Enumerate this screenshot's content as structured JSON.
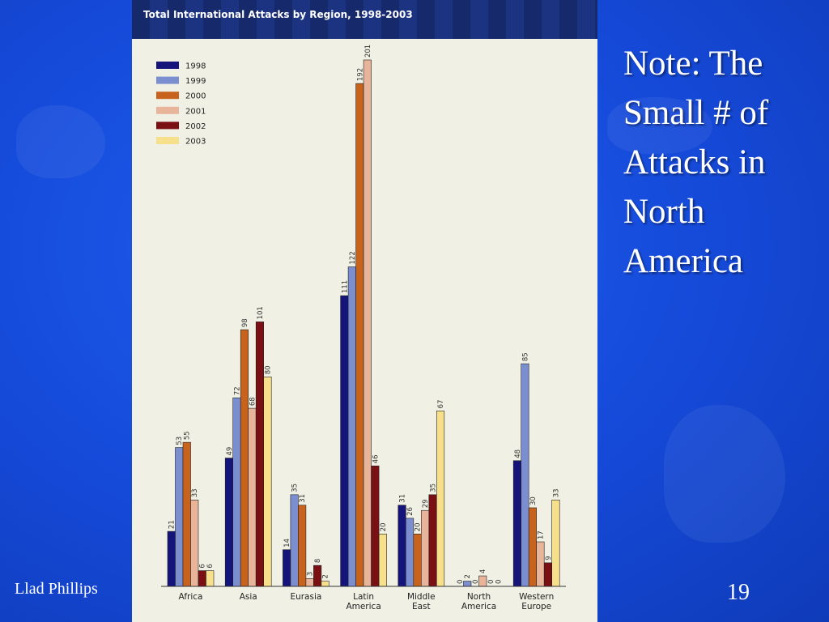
{
  "slide": {
    "note": "Note: The Small # of Attacks in North America",
    "author": "Llad Phillips",
    "page_number": "19"
  },
  "chart_data": {
    "type": "bar",
    "title": "Total International Attacks by Region, 1998-2003",
    "xlabel": "",
    "ylabel": "",
    "ylim": [
      0,
      201
    ],
    "grid": false,
    "legend_position": "top-left",
    "categories": [
      "Africa",
      "Asia",
      "Eurasia",
      "Latin America",
      "Middle East",
      "North America",
      "Western Europe"
    ],
    "category_lines": [
      [
        "Africa"
      ],
      [
        "Asia"
      ],
      [
        "Eurasia"
      ],
      [
        "Latin",
        "America"
      ],
      [
        "Middle",
        "East"
      ],
      [
        "North",
        "America"
      ],
      [
        "Western",
        "Europe"
      ]
    ],
    "series": [
      {
        "name": "1998",
        "color": "#14147a",
        "values": [
          21,
          49,
          14,
          111,
          31,
          0,
          48
        ]
      },
      {
        "name": "1999",
        "color": "#7a8ed0",
        "values": [
          53,
          72,
          35,
          122,
          26,
          2,
          85
        ]
      },
      {
        "name": "2000",
        "color": "#c8631e",
        "values": [
          55,
          98,
          31,
          192,
          20,
          0,
          30
        ]
      },
      {
        "name": "2001",
        "color": "#e8b49a",
        "values": [
          33,
          68,
          3,
          201,
          29,
          4,
          17
        ]
      },
      {
        "name": "2002",
        "color": "#7a0f14",
        "values": [
          6,
          101,
          8,
          46,
          35,
          0,
          9
        ]
      },
      {
        "name": "2003",
        "color": "#f7e08c",
        "values": [
          6,
          80,
          2,
          20,
          67,
          0,
          33
        ]
      }
    ]
  }
}
